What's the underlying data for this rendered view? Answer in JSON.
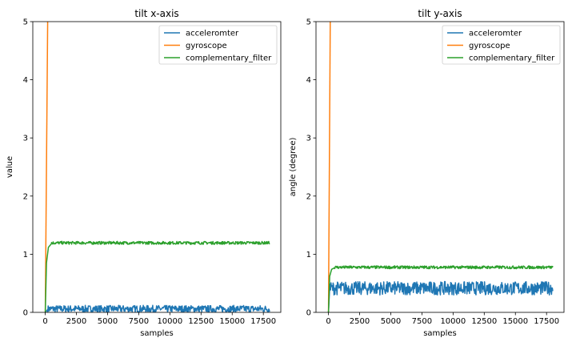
{
  "chart_data": [
    {
      "type": "line",
      "title": "tilt x-axis",
      "xlabel": "samples",
      "ylabel": "value",
      "xlim": [
        -1000,
        18900
      ],
      "ylim": [
        0,
        5
      ],
      "xticks": [
        0,
        2500,
        5000,
        7500,
        10000,
        12500,
        15000,
        17500
      ],
      "yticks": [
        0,
        1,
        2,
        3,
        4,
        5
      ],
      "grid": false,
      "legend": "top-right",
      "series": [
        {
          "name": "acceleromter",
          "color": "#1f77b4",
          "noise_band": [
            0.0,
            0.12
          ],
          "points": [
            [
              0,
              0.0
            ],
            [
              200,
              0.05
            ],
            [
              1000,
              0.05
            ],
            [
              5000,
              0.05
            ],
            [
              10000,
              0.05
            ],
            [
              15000,
              0.05
            ],
            [
              18000,
              0.05
            ]
          ]
        },
        {
          "name": "gyroscope",
          "color": "#ff7f0e",
          "points": [
            [
              0,
              0.0
            ],
            [
              200,
              5.2
            ]
          ]
        },
        {
          "name": "complementary_filter",
          "color": "#2ca02c",
          "noise_band": [
            1.17,
            1.22
          ],
          "points": [
            [
              0,
              0.0
            ],
            [
              100,
              0.85
            ],
            [
              250,
              1.12
            ],
            [
              500,
              1.18
            ],
            [
              1000,
              1.19
            ],
            [
              5000,
              1.19
            ],
            [
              10000,
              1.2
            ],
            [
              15000,
              1.2
            ],
            [
              18000,
              1.2
            ]
          ]
        }
      ]
    },
    {
      "type": "line",
      "title": "tilt y-axis",
      "xlabel": "samples",
      "ylabel": "angle (degree)",
      "xlim": [
        -1000,
        18900
      ],
      "ylim": [
        0,
        5
      ],
      "xticks": [
        0,
        2500,
        5000,
        7500,
        10000,
        12500,
        15000,
        17500
      ],
      "yticks": [
        0,
        1,
        2,
        3,
        4,
        5
      ],
      "grid": false,
      "legend": "top-right",
      "series": [
        {
          "name": "acceleromter",
          "color": "#1f77b4",
          "noise_band": [
            0.3,
            0.53
          ],
          "points": [
            [
              0,
              0.0
            ],
            [
              100,
              0.42
            ],
            [
              1000,
              0.42
            ],
            [
              5000,
              0.42
            ],
            [
              10000,
              0.42
            ],
            [
              15000,
              0.42
            ],
            [
              18000,
              0.42
            ]
          ]
        },
        {
          "name": "gyroscope",
          "color": "#ff7f0e",
          "points": [
            [
              0,
              0.0
            ],
            [
              150,
              5.2
            ]
          ]
        },
        {
          "name": "complementary_filter",
          "color": "#2ca02c",
          "noise_band": [
            0.75,
            0.8
          ],
          "points": [
            [
              0,
              0.0
            ],
            [
              100,
              0.62
            ],
            [
              250,
              0.74
            ],
            [
              500,
              0.77
            ],
            [
              1000,
              0.77
            ],
            [
              5000,
              0.77
            ],
            [
              10000,
              0.78
            ],
            [
              15000,
              0.78
            ],
            [
              18000,
              0.78
            ]
          ]
        }
      ]
    }
  ]
}
